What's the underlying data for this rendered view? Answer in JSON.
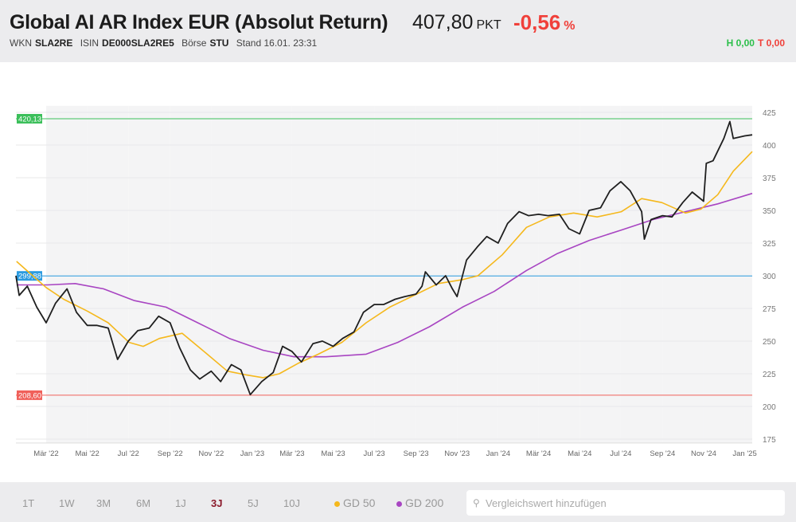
{
  "header": {
    "title": "Global AI AR Index EUR (Absolut Return)",
    "price": "407,80",
    "unit": "PKT",
    "change": "-0,56",
    "change_unit": "%",
    "wkn_label": "WKN",
    "wkn": "SLA2RE",
    "isin_label": "ISIN",
    "isin": "DE000SLA2RE5",
    "exchange_label": "Börse",
    "exchange": "STU",
    "stand": "Stand 16.01. 23:31",
    "high": "H 0,00",
    "low": "T 0,00"
  },
  "footer": {
    "ranges": [
      "1T",
      "1W",
      "3M",
      "6M",
      "1J",
      "3J",
      "5J",
      "10J"
    ],
    "active_range": "3J",
    "ma50": "GD 50",
    "ma200": "GD 200",
    "search_placeholder": "Vergleichswert hinzufügen",
    "search_icon": "magnifier-icon"
  },
  "colors": {
    "price": "#1f1f1f",
    "ma50": "#f5b81c",
    "ma200": "#a845c2",
    "high_line": "#3bbf5a",
    "mid_line": "#2b9be0",
    "low_line": "#f0605a",
    "band": "#f4f4f5"
  },
  "chart_data": {
    "type": "line",
    "ylim": [
      175,
      430
    ],
    "xlim": [
      "2022-01-14",
      "2025-01-16"
    ],
    "grid": true,
    "yticks": [
      175,
      200,
      225,
      250,
      275,
      300,
      325,
      350,
      375,
      400,
      425
    ],
    "xticks": [
      {
        "date": "2022-03-01",
        "label": "Mär '22"
      },
      {
        "date": "2022-05-01",
        "label": "Mai '22"
      },
      {
        "date": "2022-07-01",
        "label": "Jul '22"
      },
      {
        "date": "2022-09-01",
        "label": "Sep '22"
      },
      {
        "date": "2022-11-01",
        "label": "Nov '22"
      },
      {
        "date": "2023-01-01",
        "label": "Jan '23"
      },
      {
        "date": "2023-03-01",
        "label": "Mär '23"
      },
      {
        "date": "2023-05-01",
        "label": "Mai '23"
      },
      {
        "date": "2023-07-01",
        "label": "Jul '23"
      },
      {
        "date": "2023-09-01",
        "label": "Sep '23"
      },
      {
        "date": "2023-11-01",
        "label": "Nov '23"
      },
      {
        "date": "2024-01-01",
        "label": "Jan '24"
      },
      {
        "date": "2024-03-01",
        "label": "Mär '24"
      },
      {
        "date": "2024-05-01",
        "label": "Mai '24"
      },
      {
        "date": "2024-07-01",
        "label": "Jul '24"
      },
      {
        "date": "2024-09-01",
        "label": "Sep '24"
      },
      {
        "date": "2024-11-01",
        "label": "Nov '24"
      },
      {
        "date": "2025-01-01",
        "label": "Jan '25"
      }
    ],
    "reference_lines": [
      {
        "value": 420.13,
        "label": "420,13",
        "color": "#3bbf5a"
      },
      {
        "value": 299.88,
        "label": "299,88",
        "color": "#2b9be0"
      },
      {
        "value": 208.6,
        "label": "208,60",
        "color": "#f0605a"
      }
    ],
    "series": [
      {
        "key": "price",
        "points": [
          [
            "2022-01-14",
            300
          ],
          [
            "2022-01-20",
            285
          ],
          [
            "2022-02-01",
            292
          ],
          [
            "2022-02-15",
            276
          ],
          [
            "2022-03-01",
            264
          ],
          [
            "2022-03-15",
            279
          ],
          [
            "2022-04-01",
            290
          ],
          [
            "2022-04-15",
            272
          ],
          [
            "2022-05-01",
            262
          ],
          [
            "2022-05-15",
            262
          ],
          [
            "2022-06-01",
            260
          ],
          [
            "2022-06-15",
            236
          ],
          [
            "2022-07-01",
            250
          ],
          [
            "2022-07-15",
            258
          ],
          [
            "2022-08-01",
            260
          ],
          [
            "2022-08-15",
            269
          ],
          [
            "2022-09-01",
            264
          ],
          [
            "2022-09-15",
            245
          ],
          [
            "2022-10-01",
            228
          ],
          [
            "2022-10-15",
            221
          ],
          [
            "2022-11-01",
            227
          ],
          [
            "2022-11-15",
            219
          ],
          [
            "2022-12-01",
            232
          ],
          [
            "2022-12-15",
            228
          ],
          [
            "2022-12-29",
            209
          ],
          [
            "2023-01-15",
            219
          ],
          [
            "2023-02-01",
            226
          ],
          [
            "2023-02-15",
            246
          ],
          [
            "2023-03-01",
            242
          ],
          [
            "2023-03-15",
            234
          ],
          [
            "2023-04-01",
            248
          ],
          [
            "2023-04-15",
            250
          ],
          [
            "2023-05-01",
            246
          ],
          [
            "2023-05-15",
            252
          ],
          [
            "2023-06-01",
            257
          ],
          [
            "2023-06-15",
            272
          ],
          [
            "2023-07-01",
            278
          ],
          [
            "2023-07-15",
            278
          ],
          [
            "2023-08-01",
            282
          ],
          [
            "2023-08-15",
            284
          ],
          [
            "2023-09-01",
            286
          ],
          [
            "2023-09-10",
            292
          ],
          [
            "2023-09-15",
            303
          ],
          [
            "2023-10-01",
            293
          ],
          [
            "2023-10-15",
            300
          ],
          [
            "2023-10-25",
            290
          ],
          [
            "2023-11-01",
            284
          ],
          [
            "2023-11-15",
            312
          ],
          [
            "2023-12-01",
            322
          ],
          [
            "2023-12-15",
            330
          ],
          [
            "2024-01-01",
            325
          ],
          [
            "2024-01-15",
            340
          ],
          [
            "2024-02-01",
            349
          ],
          [
            "2024-02-15",
            346
          ],
          [
            "2024-03-01",
            347
          ],
          [
            "2024-03-15",
            346
          ],
          [
            "2024-04-01",
            347
          ],
          [
            "2024-04-15",
            336
          ],
          [
            "2024-05-01",
            332
          ],
          [
            "2024-05-15",
            350
          ],
          [
            "2024-06-01",
            352
          ],
          [
            "2024-06-15",
            365
          ],
          [
            "2024-07-01",
            372
          ],
          [
            "2024-07-15",
            365
          ],
          [
            "2024-08-01",
            349
          ],
          [
            "2024-08-05",
            328
          ],
          [
            "2024-08-15",
            343
          ],
          [
            "2024-09-01",
            346
          ],
          [
            "2024-09-15",
            345
          ],
          [
            "2024-10-01",
            356
          ],
          [
            "2024-10-15",
            364
          ],
          [
            "2024-11-01",
            357
          ],
          [
            "2024-11-05",
            386
          ],
          [
            "2024-11-15",
            388
          ],
          [
            "2024-12-01",
            405
          ],
          [
            "2024-12-10",
            418
          ],
          [
            "2024-12-15",
            405
          ],
          [
            "2025-01-01",
            407
          ],
          [
            "2025-01-16",
            407.8
          ]
        ]
      },
      {
        "key": "ma50",
        "name": "GD 50",
        "points": [
          [
            "2022-01-16",
            311
          ],
          [
            "2022-02-09",
            300
          ],
          [
            "2022-03-01",
            291
          ],
          [
            "2022-03-27",
            282
          ],
          [
            "2022-05-01",
            273
          ],
          [
            "2022-06-01",
            264
          ],
          [
            "2022-07-02",
            249
          ],
          [
            "2022-07-23",
            246
          ],
          [
            "2022-08-16",
            252
          ],
          [
            "2022-09-19",
            256
          ],
          [
            "2022-10-26",
            240
          ],
          [
            "2022-11-25",
            227
          ],
          [
            "2022-12-24",
            224
          ],
          [
            "2023-01-17",
            222
          ],
          [
            "2023-02-10",
            225
          ],
          [
            "2023-03-10",
            233
          ],
          [
            "2023-04-09",
            240
          ],
          [
            "2023-05-14",
            249
          ],
          [
            "2023-06-19",
            264
          ],
          [
            "2023-07-24",
            276
          ],
          [
            "2023-08-29",
            285
          ],
          [
            "2023-10-04",
            294
          ],
          [
            "2023-11-09",
            297
          ],
          [
            "2023-12-02",
            300
          ],
          [
            "2024-01-07",
            316
          ],
          [
            "2024-02-12",
            337
          ],
          [
            "2024-03-17",
            345
          ],
          [
            "2024-04-22",
            348
          ],
          [
            "2024-05-27",
            345
          ],
          [
            "2024-07-02",
            349
          ],
          [
            "2024-08-01",
            359
          ],
          [
            "2024-08-31",
            356
          ],
          [
            "2024-10-05",
            348
          ],
          [
            "2024-10-28",
            351
          ],
          [
            "2024-11-22",
            362
          ],
          [
            "2024-12-15",
            380
          ],
          [
            "2025-01-14",
            395
          ]
        ]
      },
      {
        "key": "ma200",
        "name": "GD 200",
        "points": [
          [
            "2022-01-16",
            293
          ],
          [
            "2022-03-03",
            293
          ],
          [
            "2022-04-13",
            294
          ],
          [
            "2022-05-25",
            290
          ],
          [
            "2022-07-10",
            281
          ],
          [
            "2022-08-26",
            276
          ],
          [
            "2022-10-12",
            264
          ],
          [
            "2022-11-28",
            252
          ],
          [
            "2023-01-17",
            243
          ],
          [
            "2023-03-04",
            238
          ],
          [
            "2023-04-20",
            238
          ],
          [
            "2023-06-19",
            240
          ],
          [
            "2023-08-05",
            249
          ],
          [
            "2023-09-21",
            261
          ],
          [
            "2023-11-09",
            276
          ],
          [
            "2023-12-26",
            288
          ],
          [
            "2024-02-12",
            304
          ],
          [
            "2024-03-29",
            317
          ],
          [
            "2024-05-15",
            327
          ],
          [
            "2024-07-02",
            335
          ],
          [
            "2024-08-18",
            343
          ],
          [
            "2024-10-05",
            349
          ],
          [
            "2024-11-22",
            355
          ],
          [
            "2025-01-14",
            363
          ]
        ]
      }
    ]
  }
}
